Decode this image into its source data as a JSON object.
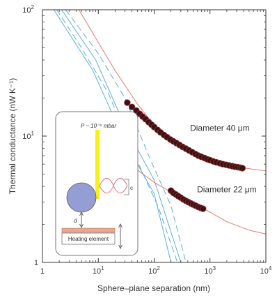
{
  "chart_data": {
    "type": "scatter",
    "xscale": "log",
    "yscale": "log",
    "xlim": [
      1,
      10000
    ],
    "ylim": [
      1,
      100
    ],
    "xlabel": "Sphere–plane separation  (nm)",
    "ylabel": "Thermal conductance  (nW K⁻¹)",
    "x_ticks": [
      {
        "value": 1,
        "label": "1",
        "exp": ""
      },
      {
        "value": 10,
        "label": "10",
        "exp": "1"
      },
      {
        "value": 100,
        "label": "10",
        "exp": "2"
      },
      {
        "value": 1000,
        "label": "10",
        "exp": "3"
      },
      {
        "value": 10000,
        "label": "10",
        "exp": "4"
      }
    ],
    "y_ticks": [
      {
        "value": 1,
        "label": "1",
        "exp": ""
      },
      {
        "value": 10,
        "label": "10",
        "exp": "1"
      },
      {
        "value": 100,
        "label": "10",
        "exp": "2"
      }
    ],
    "grid": false,
    "series": [
      {
        "name": "Diameter 40 μm",
        "points": [
          [
            33,
            18.4
          ],
          [
            40,
            17.0
          ],
          [
            48,
            15.9
          ],
          [
            55,
            15.0
          ],
          [
            62,
            14.3
          ],
          [
            70,
            13.6
          ],
          [
            80,
            12.9
          ],
          [
            90,
            12.3
          ],
          [
            100,
            11.8
          ],
          [
            115,
            11.2
          ],
          [
            130,
            10.7
          ],
          [
            150,
            10.2
          ],
          [
            170,
            9.8
          ],
          [
            195,
            9.4
          ],
          [
            220,
            9.1
          ],
          [
            250,
            8.8
          ],
          [
            285,
            8.5
          ],
          [
            325,
            8.2
          ],
          [
            370,
            7.95
          ],
          [
            420,
            7.7
          ],
          [
            480,
            7.45
          ],
          [
            550,
            7.2
          ],
          [
            620,
            7.0
          ],
          [
            700,
            6.85
          ],
          [
            800,
            6.7
          ],
          [
            900,
            6.55
          ],
          [
            1000,
            6.45
          ],
          [
            1150,
            6.3
          ],
          [
            1300,
            6.2
          ],
          [
            1500,
            6.1
          ],
          [
            1700,
            6.0
          ],
          [
            1950,
            5.92
          ],
          [
            2200,
            5.85
          ],
          [
            2500,
            5.78
          ],
          [
            2800,
            5.72
          ],
          [
            3150,
            5.67
          ],
          [
            3500,
            5.62
          ],
          [
            3800,
            5.58
          ]
        ]
      },
      {
        "name": "Diameter 22 μm",
        "points": [
          [
            200,
            3.7
          ],
          [
            220,
            3.55
          ],
          [
            245,
            3.45
          ],
          [
            270,
            3.35
          ],
          [
            300,
            3.25
          ],
          [
            335,
            3.15
          ],
          [
            370,
            3.07
          ],
          [
            410,
            3.0
          ],
          [
            455,
            2.93
          ],
          [
            500,
            2.87
          ],
          [
            555,
            2.81
          ],
          [
            615,
            2.75
          ],
          [
            680,
            2.7
          ],
          [
            750,
            2.66
          ]
        ]
      }
    ],
    "fit_curves": [
      {
        "points": [
          [
            4.5,
            100
          ],
          [
            10,
            55
          ],
          [
            20,
            33
          ],
          [
            50,
            18
          ],
          [
            100,
            12.2
          ],
          [
            200,
            9.3
          ],
          [
            500,
            7.3
          ],
          [
            1000,
            6.5
          ],
          [
            2000,
            5.95
          ],
          [
            4000,
            5.6
          ],
          [
            10000,
            5.3
          ]
        ]
      },
      {
        "points": [
          [
            20,
            8.2
          ],
          [
            50,
            5.4
          ],
          [
            100,
            4.3
          ],
          [
            200,
            3.6
          ],
          [
            500,
            2.95
          ],
          [
            1000,
            2.5
          ],
          [
            2000,
            2.1
          ],
          [
            5000,
            1.8
          ],
          [
            10000,
            1.68
          ]
        ]
      }
    ],
    "asymptote_lines": [
      {
        "style": "solid",
        "points": [
          [
            2.2,
            100
          ],
          [
            9,
            40
          ],
          [
            30,
            12
          ],
          [
            100,
            4.5
          ],
          [
            300,
            1.0
          ]
        ]
      },
      {
        "style": "solid",
        "points": [
          [
            1.6,
            100
          ],
          [
            8,
            33
          ],
          [
            30,
            9
          ],
          [
            100,
            3.5
          ],
          [
            200,
            1.0
          ]
        ]
      },
      {
        "style": "dashed",
        "points": [
          [
            1.8,
            100
          ],
          [
            5,
            50
          ],
          [
            15,
            22
          ],
          [
            45,
            7
          ],
          [
            120,
            2.7
          ],
          [
            260,
            1.0
          ]
        ]
      },
      {
        "style": "dashed",
        "points": [
          [
            2.6,
            100
          ],
          [
            10,
            45
          ],
          [
            30,
            20
          ],
          [
            80,
            7
          ],
          [
            200,
            2.8
          ],
          [
            370,
            1.0
          ]
        ]
      }
    ],
    "annotations": [
      {
        "text": "Diameter 40 μm",
        "x": 1500,
        "y": 11.0
      },
      {
        "text": "Diameter 22 μm",
        "x": 2000,
        "y": 3.6
      }
    ],
    "inset": {
      "pressure_label": "P ~ 10⁻⁶ mbar",
      "d_label": "d",
      "c_label": "c",
      "plate_label": "Heating element"
    },
    "colors": {
      "marker_fill": "#3a1215",
      "marker_stroke": "#9a2b2b",
      "fit": "#e87a70",
      "asymptote": "#5aaee0",
      "cantilever": "#f7ef1e",
      "sphere": "#959ed4",
      "plate": "#eea78d",
      "axis": "#333333"
    }
  }
}
